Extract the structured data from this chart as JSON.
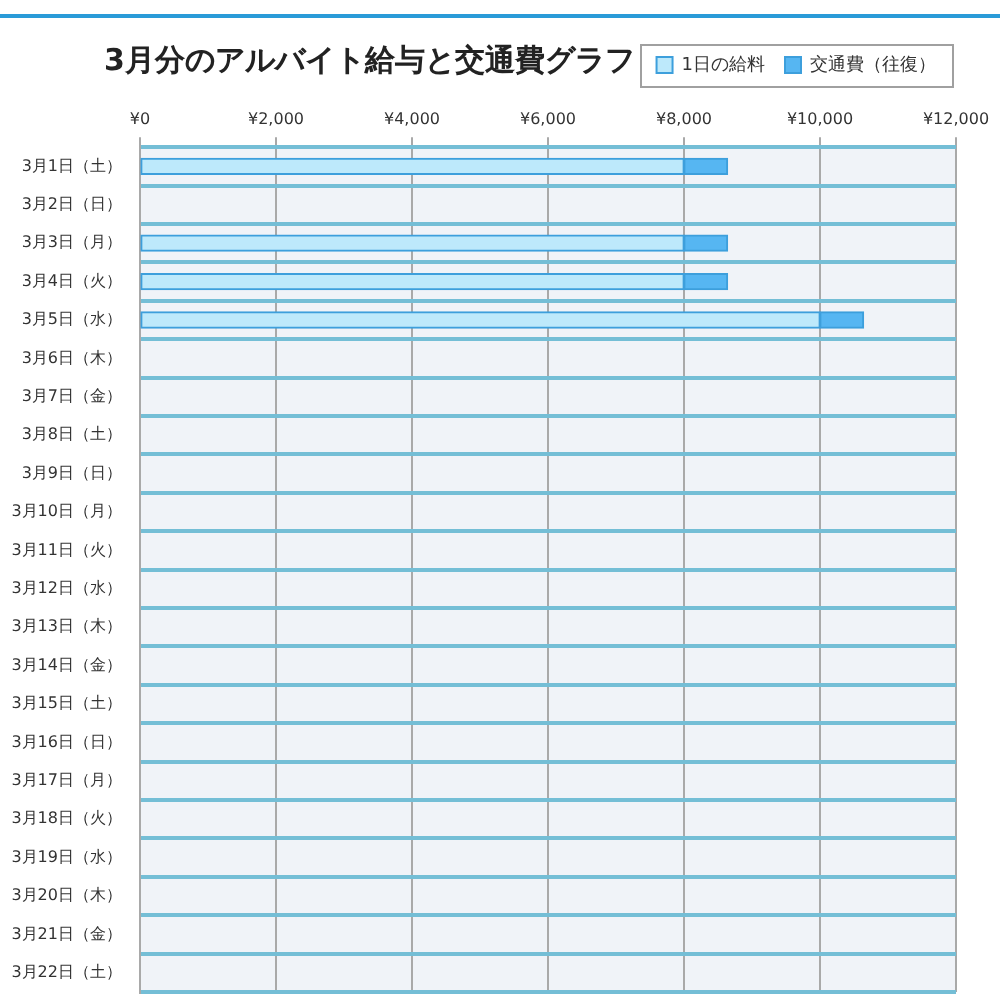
{
  "chart_data": {
    "type": "bar",
    "title": "3月分のアルバイト給与と交通費グラフ",
    "orientation": "horizontal",
    "stacked": true,
    "categories": [
      "3月1日（土）",
      "3月2日（日）",
      "3月3日（月）",
      "3月4日（火）",
      "3月5日（水）",
      "3月6日（木）",
      "3月7日（金）",
      "3月8日（土）",
      "3月9日（日）",
      "3月10日（月）",
      "3月11日（火）",
      "3月12日（水）",
      "3月13日（木）",
      "3月14日（金）",
      "3月15日（土）",
      "3月16日（日）",
      "3月17日（月）",
      "3月18日（火）",
      "3月19日（水）",
      "3月20日（木）",
      "3月21日（金）",
      "3月22日（土）"
    ],
    "series": [
      {
        "name": "1日の給料",
        "color": "#bde9fb",
        "values": [
          8000,
          null,
          8000,
          8000,
          10000,
          null,
          null,
          null,
          null,
          null,
          null,
          null,
          null,
          null,
          null,
          null,
          null,
          null,
          null,
          null,
          null,
          null
        ]
      },
      {
        "name": "交通費（往復）",
        "color": "#56b6f2",
        "values": [
          640,
          null,
          640,
          640,
          640,
          null,
          null,
          null,
          null,
          null,
          null,
          null,
          null,
          null,
          null,
          null,
          null,
          null,
          null,
          null,
          null,
          null
        ]
      }
    ],
    "xlim": [
      0,
      12000
    ],
    "xticks": [
      {
        "value": 0,
        "label": "¥0"
      },
      {
        "value": 2000,
        "label": "¥2,000"
      },
      {
        "value": 4000,
        "label": "¥4,000"
      },
      {
        "value": 6000,
        "label": "¥6,000"
      },
      {
        "value": 8000,
        "label": "¥8,000"
      },
      {
        "value": 10000,
        "label": "¥10,000"
      },
      {
        "value": 12000,
        "label": "¥12,000"
      }
    ],
    "grid": true,
    "legend": "top right"
  }
}
